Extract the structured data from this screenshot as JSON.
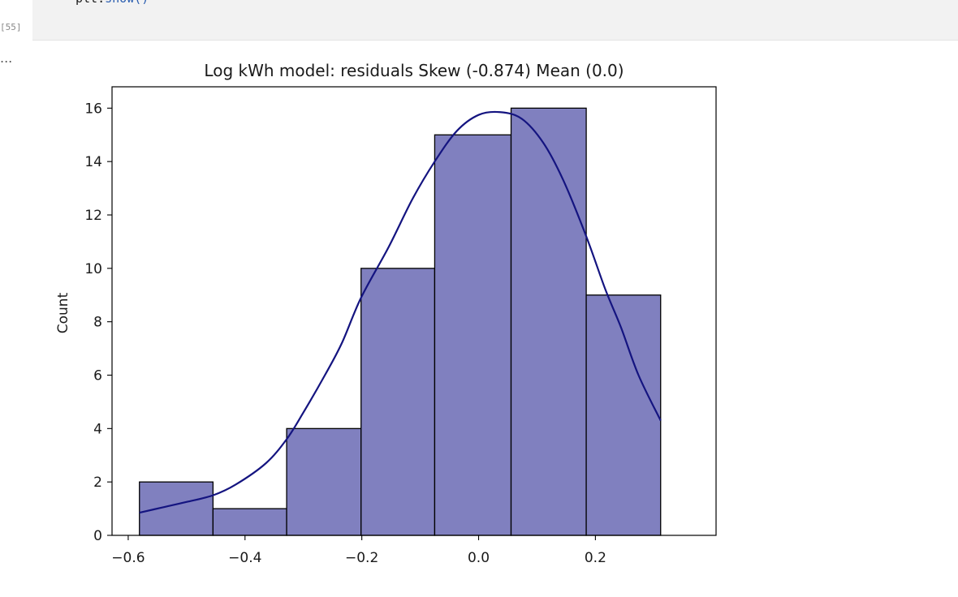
{
  "notebook": {
    "code_text_module": "plt",
    "code_text_dot": ".",
    "code_text_method": "show",
    "code_text_parens": "()",
    "execution_count": "[55]",
    "output_prompt": "..."
  },
  "chart_data": {
    "type": "bar",
    "title": "Log kWh model: residuals Skew (-0.874) Mean (0.0)",
    "xlabel": "",
    "ylabel": "Count",
    "xlim": [
      -0.6277,
      0.4066
    ],
    "ylim": [
      0,
      16.8
    ],
    "xticks": [
      -0.6,
      -0.4,
      -0.2,
      0.0,
      0.2
    ],
    "xtick_labels": [
      "−0.6",
      "−0.4",
      "−0.2",
      "0.0",
      "0.2"
    ],
    "yticks": [
      0,
      2,
      4,
      6,
      8,
      10,
      12,
      14,
      16
    ],
    "ytick_labels": [
      "0",
      "2",
      "4",
      "6",
      "8",
      "10",
      "12",
      "14",
      "16"
    ],
    "bins": [
      {
        "x0": -0.5808,
        "x1": -0.4548,
        "count": 2
      },
      {
        "x0": -0.4548,
        "x1": -0.3287,
        "count": 1
      },
      {
        "x0": -0.3287,
        "x1": -0.2013,
        "count": 4
      },
      {
        "x0": -0.2013,
        "x1": -0.0752,
        "count": 10
      },
      {
        "x0": -0.0752,
        "x1": 0.0556,
        "count": 15
      },
      {
        "x0": 0.0556,
        "x1": 0.1843,
        "count": 16
      },
      {
        "x0": 0.1843,
        "x1": 0.3117,
        "count": 9
      }
    ],
    "kde": {
      "x": [
        -0.5808,
        -0.5405,
        -0.5003,
        -0.4548,
        -0.4161,
        -0.3643,
        -0.3287,
        -0.3001,
        -0.2632,
        -0.2342,
        -0.2013,
        -0.154,
        -0.1132,
        -0.0752,
        -0.0371,
        0.0003,
        0.0371,
        0.074,
        0.1108,
        0.145,
        0.1843,
        0.2172,
        0.2436,
        0.2738,
        0.3117
      ],
      "y": [
        0.85,
        1.05,
        1.25,
        1.5,
        1.9,
        2.7,
        3.6,
        4.6,
        6.0,
        7.2,
        8.9,
        10.8,
        12.6,
        14.0,
        15.15,
        15.75,
        15.85,
        15.6,
        14.7,
        13.3,
        11.2,
        9.2,
        7.8,
        6.0,
        4.3
      ]
    },
    "grid": false,
    "legend": "none",
    "bar_color": "#8080bf",
    "bar_edge_color": "#000000",
    "kde_color": "#141480"
  }
}
